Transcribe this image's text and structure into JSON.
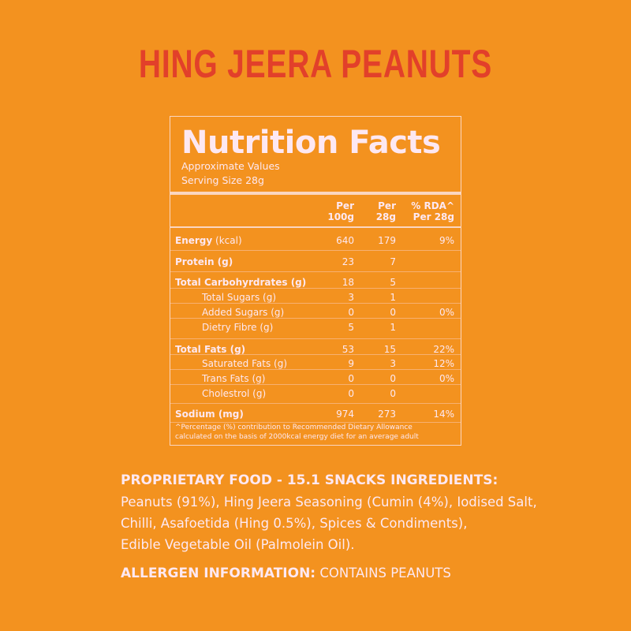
{
  "title": "HING JEERA PEANUTS",
  "nutrition": {
    "heading": "Nutrition Facts",
    "approx": "Approximate Values",
    "serving": "Serving Size 28g",
    "columns": [
      [
        "Per",
        "100g"
      ],
      [
        "Per",
        "28g"
      ],
      [
        "% RDA^",
        "Per 28g"
      ]
    ],
    "rows": [
      {
        "name": "Energy",
        "unit": " (kcal)",
        "bold": true,
        "v100": "640",
        "v28": "179",
        "rda": "9%"
      },
      {
        "name": "Protein (g)",
        "unit": "",
        "bold": true,
        "v100": "23",
        "v28": "7",
        "rda": ""
      },
      {
        "name": "Total Carbohyrdrates (g)",
        "unit": "",
        "bold": true,
        "v100": "18",
        "v28": "5",
        "rda": ""
      },
      {
        "name": "Total Sugars (g)",
        "unit": "",
        "bold": false,
        "v100": "3",
        "v28": "1",
        "rda": ""
      },
      {
        "name": "Added Sugars (g)",
        "unit": "",
        "bold": false,
        "v100": "0",
        "v28": "0",
        "rda": "0%"
      },
      {
        "name": "Dietry Fibre (g)",
        "unit": "",
        "bold": false,
        "v100": "5",
        "v28": "1",
        "rda": ""
      },
      {
        "name": "Total Fats (g)",
        "unit": "",
        "bold": true,
        "v100": "53",
        "v28": "15",
        "rda": "22%"
      },
      {
        "name": "Saturated Fats (g)",
        "unit": "",
        "bold": false,
        "v100": "9",
        "v28": "3",
        "rda": "12%"
      },
      {
        "name": "Trans Fats (g)",
        "unit": "",
        "bold": false,
        "v100": "0",
        "v28": "0",
        "rda": "0%"
      },
      {
        "name": "Cholestrol (g)",
        "unit": "",
        "bold": false,
        "v100": "0",
        "v28": "0",
        "rda": ""
      },
      {
        "name": "Sodium (mg)",
        "unit": "",
        "bold": true,
        "v100": "974",
        "v28": "273",
        "rda": "14%"
      }
    ],
    "footnote_1": "^Percentage (%) contribution to Recommended Dietary Allowance",
    "footnote_2": "calculated on the basis of 2000kcal energy diet for an average adult"
  },
  "ingredients": {
    "heading": "PROPRIETARY FOOD - 15.1 SNACKS INGREDIENTS:",
    "lines": [
      "Peanuts (91%), Hing Jeera Seasoning (Cumin (4%), Iodised Salt,",
      "Chilli, Asafoetida (Hing 0.5%), Spices & Condiments),",
      "Edible Vegetable Oil (Palmolein Oil)."
    ],
    "allergen_label": "ALLERGEN INFORMATION:",
    "allergen_value": " CONTAINS PEANUTS"
  },
  "colors": {
    "background": "#f3921f",
    "title": "#e2402a",
    "text": "#fde8f2"
  }
}
